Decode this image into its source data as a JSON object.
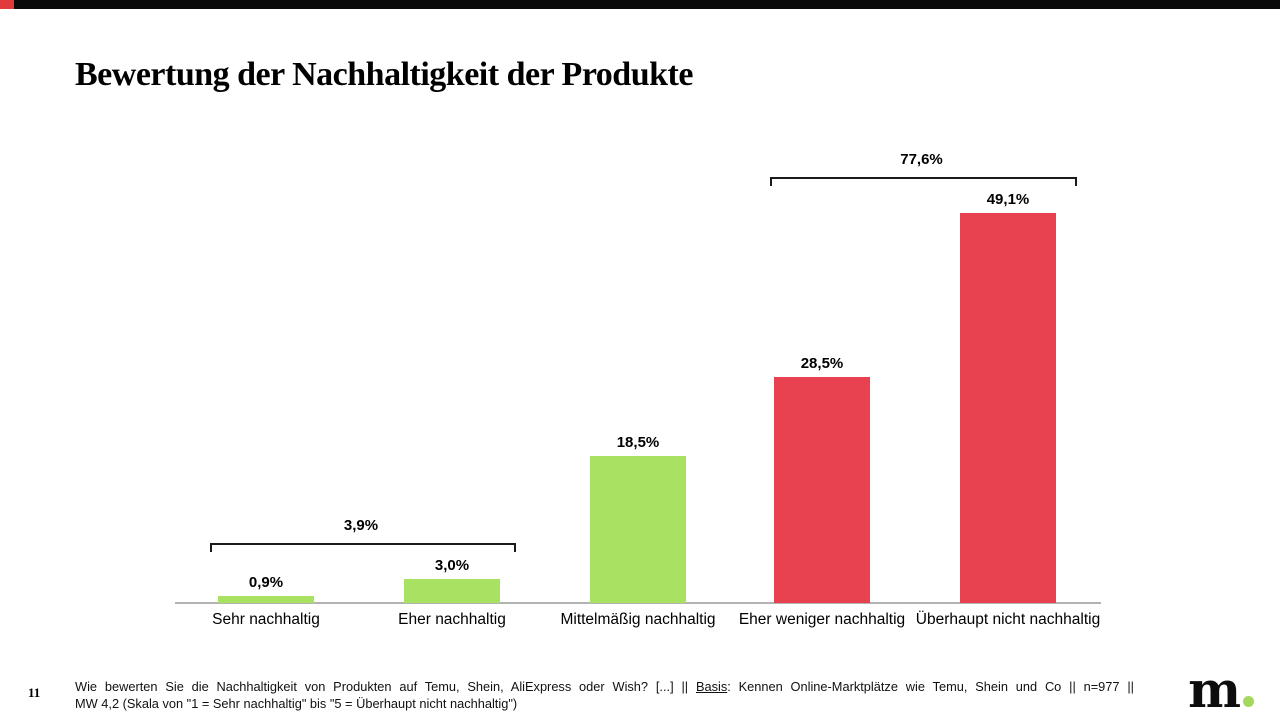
{
  "slide": {
    "title": "Bewertung der Nachhaltigkeit der Produkte",
    "page_number": "11",
    "logo_text": "m"
  },
  "footnote": {
    "line1_part1": "Wie bewerten Sie die Nachhaltigkeit von Produkten auf Temu, Shein, AliExpress oder Wish? [...] || ",
    "basis_label": "Basis",
    "line1_part2": ": Kennen Online-Marktplätze wie Temu, Shein und Co || n=977 ||",
    "line2": "MW 4,2 (Skala von \"1 = Sehr nachhaltig\" bis \"5 = Überhaupt nicht nachhaltig\")"
  },
  "chart_data": {
    "type": "bar",
    "title": "Bewertung der Nachhaltigkeit der Produkte",
    "categories": [
      "Sehr nachhaltig",
      "Eher nachhaltig",
      "Mittelmäßig nachhaltig",
      "Eher weniger nachhaltig",
      "Überhaupt nicht nachhaltig"
    ],
    "values": [
      0.9,
      3.0,
      18.5,
      28.5,
      49.1
    ],
    "value_labels": [
      "0,9%",
      "3,0%",
      "18,5%",
      "28,5%",
      "49,1%"
    ],
    "bar_colors": [
      "#a9e162",
      "#a9e162",
      "#a9e162",
      "#e8414f",
      "#e8414f"
    ],
    "xlabel": "",
    "ylabel": "",
    "ylim": [
      0,
      55
    ],
    "grid": false,
    "legend": null,
    "annotations": [
      {
        "label": "3,9%",
        "value": 3.9,
        "spans_categories": [
          "Sehr nachhaltig",
          "Eher nachhaltig"
        ]
      },
      {
        "label": "77,6%",
        "value": 77.6,
        "spans_categories": [
          "Eher weniger nachhaltig",
          "Überhaupt nicht nachhaltig"
        ]
      }
    ],
    "colors": {
      "positive_green": "#a9e162",
      "negative_red": "#e8414f",
      "axis_line": "#b3b3b3",
      "bracket": "#1a1a1a"
    }
  }
}
